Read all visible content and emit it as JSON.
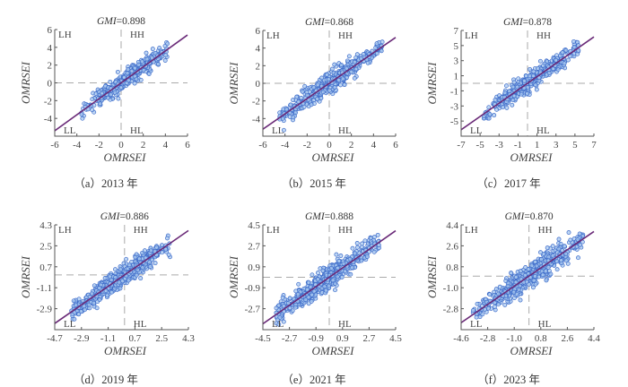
{
  "figure": {
    "point_style": {
      "fill": "#a9c9f0",
      "edge": "#3d6bc9"
    },
    "line_color": "#6a2a78",
    "quadrant_labels": [
      "LH",
      "HH",
      "LL",
      "HL"
    ]
  },
  "chart_data": [
    {
      "type": "scatter",
      "panel": "a",
      "caption": "（a）2013 年",
      "title": "GMI=0.898",
      "gmi_name": "GMI",
      "gmi_value": "=0.898",
      "xlabel": "OMRSEI",
      "ylabel": "OMRSEI",
      "xlim": [
        -6,
        6
      ],
      "ylim": [
        -6,
        6
      ],
      "xticks": [
        -6,
        -4,
        -2,
        0,
        2,
        4,
        6
      ],
      "yticks": [
        -4,
        -2,
        0,
        2,
        4,
        6
      ],
      "xtick_labels": [
        "-6",
        "-4",
        "-2",
        "0",
        "2",
        "4",
        "6"
      ],
      "ytick_labels": [
        "-4",
        "-2",
        "0",
        "2",
        "4",
        "6"
      ],
      "regression": {
        "slope": 0.898,
        "intercept": 0
      },
      "cloud": {
        "x_range": [
          -3.6,
          4.2
        ],
        "spread": 0.9,
        "n": 420,
        "seed": 11
      }
    },
    {
      "type": "scatter",
      "panel": "b",
      "caption": "（b）2015 年",
      "title": "GMI=0.868",
      "gmi_name": "GMI",
      "gmi_value": "=0.868",
      "xlabel": "OMRSEI",
      "ylabel": "OMRSEI",
      "xlim": [
        -6,
        6
      ],
      "ylim": [
        -6,
        6
      ],
      "xticks": [
        -6,
        -4,
        -2,
        0,
        2,
        4,
        6
      ],
      "yticks": [
        -4,
        -2,
        0,
        2,
        4,
        6
      ],
      "xtick_labels": [
        "-6",
        "-4",
        "-2",
        "0",
        "2",
        "4",
        "6"
      ],
      "ytick_labels": [
        "-4",
        "-2",
        "0",
        "2",
        "4",
        "6"
      ],
      "regression": {
        "slope": 0.868,
        "intercept": 0
      },
      "cloud": {
        "x_range": [
          -4.5,
          4.8
        ],
        "spread": 1.0,
        "n": 480,
        "seed": 23
      }
    },
    {
      "type": "scatter",
      "panel": "c",
      "caption": "（c）2017 年",
      "title": "GMI=0.878",
      "gmi_name": "GMI",
      "gmi_value": "=0.878",
      "xlabel": "OMRSEI",
      "ylabel": "OMRSEI",
      "xlim": [
        -7,
        7
      ],
      "ylim": [
        -7,
        7
      ],
      "xticks": [
        -7,
        -5,
        -3,
        -1,
        1,
        3,
        5,
        7
      ],
      "yticks": [
        -5,
        -3,
        -1,
        1,
        3,
        5,
        7
      ],
      "xtick_labels": [
        "-7",
        "-5",
        "-3",
        "-1",
        "1",
        "3",
        "5",
        "7"
      ],
      "ytick_labels": [
        "-5",
        "-3",
        "-1",
        "1",
        "3",
        "5",
        "7"
      ],
      "regression": {
        "slope": 0.878,
        "intercept": 0
      },
      "cloud": {
        "x_range": [
          -4.6,
          5.4
        ],
        "spread": 1.05,
        "n": 480,
        "seed": 37
      }
    },
    {
      "type": "scatter",
      "panel": "d",
      "caption": "（d）2019 年",
      "title": "GMI=0.886",
      "gmi_name": "GMI",
      "gmi_value": "=0.886",
      "xlabel": "OMRSEI",
      "ylabel": "OMRSEI",
      "xlim": [
        -4.7,
        4.3
      ],
      "ylim": [
        -4.7,
        4.3
      ],
      "xticks": [
        -4.7,
        -2.9,
        -1.1,
        0.7,
        2.5,
        4.3
      ],
      "yticks": [
        -2.9,
        -1.1,
        0.7,
        2.5,
        4.3
      ],
      "xtick_labels": [
        "-4.7",
        "-2.9",
        "-1.1",
        "0.7",
        "2.5",
        "4.3"
      ],
      "ytick_labels": [
        "-2.9",
        "-1.1",
        "0.7",
        "2.5",
        "4.3"
      ],
      "regression": {
        "slope": 0.886,
        "intercept": 0
      },
      "cloud": {
        "x_range": [
          -3.6,
          3.1
        ],
        "spread": 0.8,
        "n": 560,
        "seed": 41
      }
    },
    {
      "type": "scatter",
      "panel": "e",
      "caption": "（e）2021 年",
      "title": "GMI=0.888",
      "gmi_name": "GMI",
      "gmi_value": "=0.888",
      "xlabel": "OMRSEI",
      "ylabel": "OMRSEI",
      "xlim": [
        -4.5,
        4.5
      ],
      "ylim": [
        -4.5,
        4.5
      ],
      "xticks": [
        -4.5,
        -2.7,
        -0.9,
        0.9,
        2.7,
        4.5
      ],
      "yticks": [
        -2.7,
        -0.9,
        0.9,
        2.7,
        4.5
      ],
      "xtick_labels": [
        "-4.5",
        "-2.7",
        "-0.9",
        "0.9",
        "2.7",
        "4.5"
      ],
      "ytick_labels": [
        "-2.7",
        "-0.9",
        "0.9",
        "2.7",
        "4.5"
      ],
      "regression": {
        "slope": 0.888,
        "intercept": 0
      },
      "cloud": {
        "x_range": [
          -3.6,
          3.4
        ],
        "spread": 0.85,
        "n": 560,
        "seed": 53
      }
    },
    {
      "type": "scatter",
      "panel": "f",
      "caption": "（f）2023 年",
      "title": "GMI=0.870",
      "gmi_name": "GMI",
      "gmi_value": "=0.870",
      "xlabel": "OMRSEI",
      "ylabel": "OMRSEI",
      "xlim": [
        -4.6,
        4.4
      ],
      "ylim": [
        -4.6,
        4.4
      ],
      "xticks": [
        -4.6,
        -2.8,
        -1.0,
        0.8,
        2.6,
        4.4
      ],
      "yticks": [
        -2.8,
        -1.0,
        0.8,
        2.6,
        4.4
      ],
      "xtick_labels": [
        "-4.6",
        "-2.8",
        "-1.0",
        "0.8",
        "2.6",
        "4.4"
      ],
      "ytick_labels": [
        "-2.8",
        "-1.0",
        "0.8",
        "2.6",
        "4.4"
      ],
      "regression": {
        "slope": 0.87,
        "intercept": 0
      },
      "cloud": {
        "x_range": [
          -3.8,
          3.7
        ],
        "spread": 0.9,
        "n": 560,
        "seed": 67
      }
    }
  ]
}
